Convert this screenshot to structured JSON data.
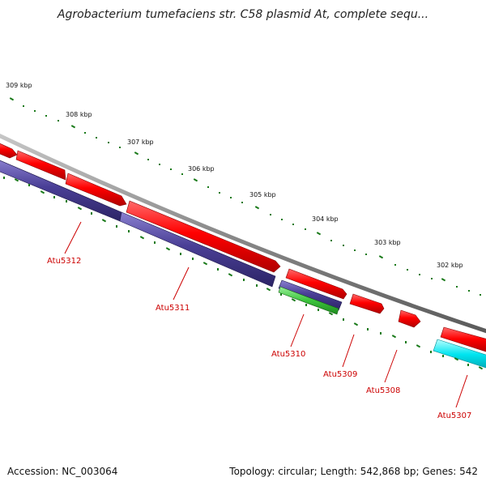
{
  "title": "Agrobacterium tumefaciens str. C58 plasmid At, complete sequ...",
  "accession_text": "Accession: NC_003064",
  "topology_text": "Topology: circular; Length: 542,868 bp; Genes: 542",
  "colors": {
    "backbone": "#8a8a8a",
    "tick": "#1a7a1a",
    "forward_cds": "#ff0000",
    "reverse_cds": "#4a3f96",
    "green_feature": "#3cc43c",
    "cyan_feature": "#00e5f0",
    "label": "#cc0000"
  },
  "scale_labels": [
    "309 kbp",
    "308 kbp",
    "307 kbp",
    "306 kbp",
    "305 kbp",
    "304 kbp",
    "303 kbp",
    "302 kbp"
  ],
  "gene_labels": [
    "Atu5312",
    "Atu5311",
    "Atu5310",
    "Atu5309",
    "Atu5308",
    "Atu5307"
  ]
}
